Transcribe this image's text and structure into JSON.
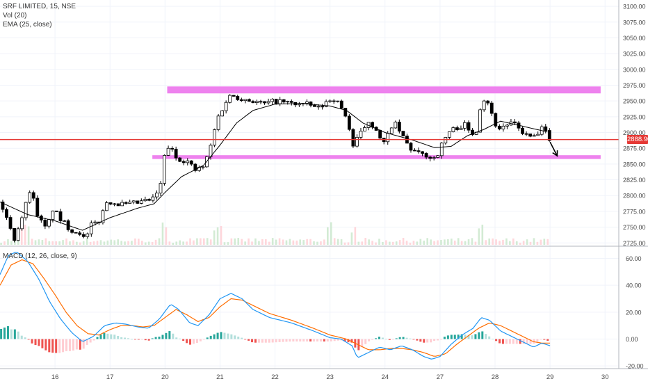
{
  "legend": {
    "symbol": "SRF LIMITED, 15, NSE",
    "volume": "Vol (20)",
    "ema": "EMA (25, close)",
    "macd": "MACD (12, 26, close, 9)"
  },
  "colors": {
    "up_candle": "#ffffff",
    "down_candle": "#000000",
    "zone": "#ee82ee",
    "support_line": "#e53935",
    "ema_line": "#000000",
    "macd_line": "#2196f3",
    "signal_line": "#ff6d00",
    "hist_up_strong": "#26a69a",
    "hist_up_weak": "#b2dfdb",
    "hist_down_strong": "#ef5350",
    "hist_down_weak": "#ffcdd2",
    "price_tag_bg": "#e53935",
    "grid": "#f0f3fa"
  },
  "chart_data": [
    {
      "type": "candlestick",
      "title": "SRF LIMITED, 15, NSE",
      "x_tick_labels": [
        "16",
        "17",
        "20",
        "21",
        "22",
        "23",
        "24",
        "27",
        "28",
        "29",
        "30"
      ],
      "x_tick_days": [
        1,
        2,
        3,
        4,
        5,
        6,
        7,
        8,
        9,
        10,
        11
      ],
      "y_tick_labels": [
        "2725.00",
        "2750.00",
        "2775.00",
        "2800.00",
        "2825.00",
        "2850.00",
        "2875.00",
        "2900.00",
        "2925.00",
        "2950.00",
        "2975.00",
        "3000.00",
        "3025.00",
        "3050.00",
        "3075.00",
        "3100.00"
      ],
      "ylim": [
        2722,
        3110
      ],
      "xlim": [
        0,
        11.25
      ],
      "grid": true,
      "current_price_label": "2888.90",
      "horizontal_line": 2888.9,
      "zones": [
        {
          "from_day": 3.04,
          "to_day": 10.92,
          "low": 2962,
          "high": 2973
        },
        {
          "from_day": 2.77,
          "to_day": 10.92,
          "low": 2858,
          "high": 2864
        }
      ],
      "arrow": {
        "from_day": 10.0,
        "from_price": 2885,
        "to_day": 10.13,
        "to_price": 2863
      },
      "anchors_day_price": [
        [
          0.0,
          2790
        ],
        [
          0.12,
          2765
        ],
        [
          0.25,
          2730
        ],
        [
          0.45,
          2780
        ],
        [
          0.55,
          2812
        ],
        [
          0.7,
          2765
        ],
        [
          0.85,
          2745
        ],
        [
          0.95,
          2780
        ],
        [
          1.1,
          2762
        ],
        [
          1.3,
          2745
        ],
        [
          1.45,
          2742
        ],
        [
          1.55,
          2728
        ],
        [
          1.65,
          2752
        ],
        [
          1.8,
          2760
        ],
        [
          1.95,
          2792
        ],
        [
          2.1,
          2788
        ],
        [
          2.3,
          2785
        ],
        [
          2.6,
          2790
        ],
        [
          2.8,
          2795
        ],
        [
          2.95,
          2822
        ],
        [
          3.0,
          2872
        ],
        [
          3.08,
          2878
        ],
        [
          3.2,
          2860
        ],
        [
          3.4,
          2855
        ],
        [
          3.55,
          2840
        ],
        [
          3.7,
          2846
        ],
        [
          3.8,
          2868
        ],
        [
          3.95,
          2922
        ],
        [
          4.1,
          2948
        ],
        [
          4.2,
          2960
        ],
        [
          4.35,
          2955
        ],
        [
          4.6,
          2950
        ],
        [
          4.8,
          2945
        ],
        [
          5.0,
          2950
        ],
        [
          5.3,
          2946
        ],
        [
          5.6,
          2944
        ],
        [
          5.8,
          2938
        ],
        [
          5.95,
          2950
        ],
        [
          6.05,
          2955
        ],
        [
          6.15,
          2946
        ],
        [
          6.3,
          2925
        ],
        [
          6.42,
          2878
        ],
        [
          6.55,
          2898
        ],
        [
          6.7,
          2918
        ],
        [
          6.85,
          2905
        ],
        [
          6.95,
          2878
        ],
        [
          7.05,
          2895
        ],
        [
          7.15,
          2918
        ],
        [
          7.3,
          2896
        ],
        [
          7.45,
          2875
        ],
        [
          7.6,
          2866
        ],
        [
          7.75,
          2864
        ],
        [
          7.85,
          2858
        ],
        [
          7.95,
          2865
        ],
        [
          8.05,
          2884
        ],
        [
          8.15,
          2900
        ],
        [
          8.3,
          2908
        ],
        [
          8.45,
          2912
        ],
        [
          8.55,
          2898
        ],
        [
          8.65,
          2900
        ],
        [
          8.75,
          2950
        ],
        [
          8.85,
          2955
        ],
        [
          8.95,
          2925
        ],
        [
          9.05,
          2905
        ],
        [
          9.2,
          2912
        ],
        [
          9.3,
          2915
        ],
        [
          9.45,
          2905
        ],
        [
          9.6,
          2893
        ],
        [
          9.75,
          2893
        ],
        [
          9.85,
          2905
        ],
        [
          9.92,
          2900
        ],
        [
          10.0,
          2890
        ]
      ],
      "ema_anchors_day_price": [
        [
          0.0,
          2790
        ],
        [
          0.5,
          2770
        ],
        [
          1.0,
          2760
        ],
        [
          1.5,
          2745
        ],
        [
          2.0,
          2765
        ],
        [
          2.5,
          2780
        ],
        [
          2.8,
          2787
        ],
        [
          3.0,
          2805
        ],
        [
          3.3,
          2830
        ],
        [
          3.7,
          2848
        ],
        [
          4.0,
          2880
        ],
        [
          4.3,
          2915
        ],
        [
          4.6,
          2935
        ],
        [
          5.0,
          2945
        ],
        [
          5.5,
          2946
        ],
        [
          6.0,
          2942
        ],
        [
          6.3,
          2935
        ],
        [
          6.6,
          2915
        ],
        [
          7.0,
          2900
        ],
        [
          7.5,
          2888
        ],
        [
          7.9,
          2876
        ],
        [
          8.2,
          2878
        ],
        [
          8.5,
          2895
        ],
        [
          8.8,
          2905
        ],
        [
          9.1,
          2918
        ],
        [
          9.5,
          2910
        ],
        [
          9.8,
          2904
        ],
        [
          10.0,
          2900
        ]
      ],
      "volume_spike_days": [
        0.45,
        3.0,
        3.95,
        6.0,
        6.42,
        8.75
      ]
    },
    {
      "type": "line",
      "title": "MACD (12, 26, close, 9)",
      "y_tick_labels": [
        "-20.00",
        "0.00",
        "20.00",
        "40.00",
        "60.00"
      ],
      "ylim": [
        -22,
        67
      ],
      "series": [
        {
          "name": "MACD",
          "points_day_value": [
            [
              0.0,
              48
            ],
            [
              0.15,
              62
            ],
            [
              0.3,
              65
            ],
            [
              0.5,
              58
            ],
            [
              0.7,
              45
            ],
            [
              0.9,
              28
            ],
            [
              1.1,
              15
            ],
            [
              1.3,
              5
            ],
            [
              1.5,
              -2
            ],
            [
              1.7,
              2
            ],
            [
              1.9,
              10
            ],
            [
              2.1,
              12
            ],
            [
              2.3,
              11
            ],
            [
              2.5,
              9
            ],
            [
              2.7,
              8
            ],
            [
              2.9,
              15
            ],
            [
              3.1,
              26
            ],
            [
              3.25,
              22
            ],
            [
              3.45,
              12
            ],
            [
              3.6,
              10
            ],
            [
              3.8,
              18
            ],
            [
              4.0,
              30
            ],
            [
              4.2,
              34
            ],
            [
              4.4,
              30
            ],
            [
              4.6,
              22
            ],
            [
              4.9,
              16
            ],
            [
              5.3,
              12
            ],
            [
              5.7,
              6
            ],
            [
              6.0,
              1
            ],
            [
              6.2,
              0
            ],
            [
              6.4,
              -5
            ],
            [
              6.5,
              -14
            ],
            [
              6.7,
              -10
            ],
            [
              6.9,
              -6
            ],
            [
              7.1,
              -8
            ],
            [
              7.3,
              -5
            ],
            [
              7.5,
              -8
            ],
            [
              7.7,
              -13
            ],
            [
              7.85,
              -15
            ],
            [
              8.0,
              -13
            ],
            [
              8.2,
              -4
            ],
            [
              8.4,
              3
            ],
            [
              8.6,
              8
            ],
            [
              8.75,
              16
            ],
            [
              8.9,
              14
            ],
            [
              9.1,
              6
            ],
            [
              9.3,
              2
            ],
            [
              9.5,
              -2
            ],
            [
              9.7,
              -6
            ],
            [
              9.85,
              -3
            ],
            [
              10.0,
              -5
            ]
          ]
        },
        {
          "name": "Signal",
          "points_day_value": [
            [
              0.0,
              40
            ],
            [
              0.2,
              55
            ],
            [
              0.4,
              59
            ],
            [
              0.6,
              56
            ],
            [
              0.8,
              45
            ],
            [
              1.0,
              33
            ],
            [
              1.2,
              20
            ],
            [
              1.4,
              10
            ],
            [
              1.6,
              4
            ],
            [
              1.8,
              3
            ],
            [
              2.0,
              7
            ],
            [
              2.2,
              10
            ],
            [
              2.4,
              10
            ],
            [
              2.6,
              9
            ],
            [
              2.8,
              10
            ],
            [
              3.0,
              16
            ],
            [
              3.2,
              22
            ],
            [
              3.4,
              18
            ],
            [
              3.6,
              13
            ],
            [
              3.8,
              16
            ],
            [
              4.0,
              24
            ],
            [
              4.2,
              30
            ],
            [
              4.4,
              29
            ],
            [
              4.6,
              25
            ],
            [
              4.9,
              19
            ],
            [
              5.3,
              14
            ],
            [
              5.7,
              8
            ],
            [
              6.0,
              3
            ],
            [
              6.3,
              0
            ],
            [
              6.5,
              -4
            ],
            [
              6.7,
              -8
            ],
            [
              6.9,
              -8
            ],
            [
              7.1,
              -7
            ],
            [
              7.3,
              -7
            ],
            [
              7.5,
              -8
            ],
            [
              7.7,
              -10
            ],
            [
              7.9,
              -13
            ],
            [
              8.1,
              -11
            ],
            [
              8.3,
              -4
            ],
            [
              8.5,
              2
            ],
            [
              8.7,
              8
            ],
            [
              8.9,
              12
            ],
            [
              9.1,
              10
            ],
            [
              9.3,
              6
            ],
            [
              9.5,
              2
            ],
            [
              9.7,
              -2
            ],
            [
              9.85,
              -3
            ],
            [
              10.0,
              -3
            ]
          ]
        }
      ],
      "histogram_scale": 0.9
    }
  ]
}
